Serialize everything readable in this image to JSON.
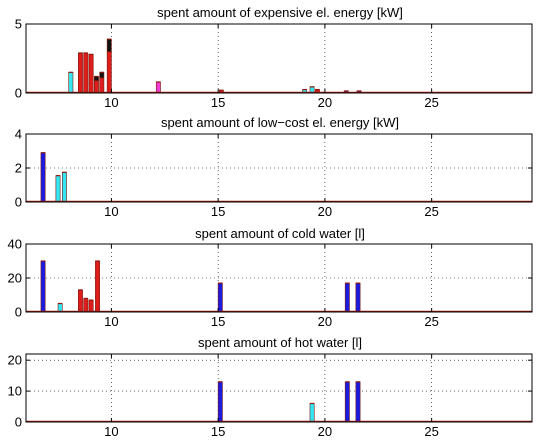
{
  "chart_data": [
    {
      "type": "bar",
      "title": "spent amount of expensive el. energy [kW]",
      "xlim": [
        6,
        29.7
      ],
      "ylim": [
        0,
        5
      ],
      "xticks": [
        10,
        15,
        20,
        25
      ],
      "yticks": [
        0,
        5
      ],
      "grid": true,
      "stacked": true,
      "bars": [
        {
          "x": 8.1,
          "segments": [
            {
              "value": 1.5,
              "color": "#33e6f2"
            }
          ]
        },
        {
          "x": 8.55,
          "segments": [
            {
              "value": 2.9,
              "color": "#dd1c1c"
            }
          ]
        },
        {
          "x": 8.8,
          "segments": [
            {
              "value": 2.9,
              "color": "#dd1c1c"
            }
          ]
        },
        {
          "x": 9.05,
          "segments": [
            {
              "value": 2.8,
              "color": "#dd1c1c"
            }
          ]
        },
        {
          "x": 9.3,
          "segments": [
            {
              "value": 0.9,
              "color": "#dd1c1c"
            },
            {
              "value": 0.3,
              "color": "#111111"
            }
          ]
        },
        {
          "x": 9.55,
          "segments": [
            {
              "value": 1.1,
              "color": "#dd1c1c"
            },
            {
              "value": 0.4,
              "color": "#111111"
            }
          ]
        },
        {
          "x": 9.9,
          "segments": [
            {
              "value": 3.0,
              "color": "#dd1c1c"
            },
            {
              "value": 0.9,
              "color": "#111111"
            }
          ]
        },
        {
          "x": 12.2,
          "segments": [
            {
              "value": 0.8,
              "color": "#f03cd2"
            }
          ]
        },
        {
          "x": 15.15,
          "segments": [
            {
              "value": 0.2,
              "color": "#dd1c1c"
            }
          ]
        },
        {
          "x": 19.05,
          "segments": [
            {
              "value": 0.25,
              "color": "#33e6f2"
            }
          ]
        },
        {
          "x": 19.4,
          "segments": [
            {
              "value": 0.45,
              "color": "#33e6f2"
            }
          ]
        },
        {
          "x": 19.65,
          "segments": [
            {
              "value": 0.25,
              "color": "#dd1c1c"
            }
          ]
        },
        {
          "x": 21.0,
          "segments": [
            {
              "value": 0.15,
              "color": "#1a1ae0"
            }
          ]
        },
        {
          "x": 21.6,
          "segments": [
            {
              "value": 0.15,
              "color": "#1a1ae0"
            }
          ]
        }
      ]
    },
    {
      "type": "bar",
      "title": "spent amount of low−cost el. energy [kW]",
      "xlim": [
        6,
        29.7
      ],
      "ylim": [
        0,
        4
      ],
      "xticks": [
        10,
        15,
        20,
        25
      ],
      "yticks": [
        0,
        2,
        4
      ],
      "grid": true,
      "stacked": true,
      "bars": [
        {
          "x": 6.8,
          "segments": [
            {
              "value": 2.9,
              "color": "#1a1ae0"
            }
          ]
        },
        {
          "x": 7.5,
          "segments": [
            {
              "value": 1.55,
              "color": "#33e6f2"
            }
          ]
        },
        {
          "x": 7.8,
          "segments": [
            {
              "value": 1.75,
              "color": "#33e6f2"
            }
          ]
        }
      ]
    },
    {
      "type": "bar",
      "title": "spent amount of cold water [l]",
      "xlim": [
        6,
        29.7
      ],
      "ylim": [
        0,
        40
      ],
      "xticks": [
        10,
        15,
        20,
        25
      ],
      "yticks": [
        0,
        20,
        40
      ],
      "grid": true,
      "stacked": true,
      "bars": [
        {
          "x": 6.8,
          "segments": [
            {
              "value": 30,
              "color": "#1a1ae0"
            }
          ]
        },
        {
          "x": 7.6,
          "segments": [
            {
              "value": 5,
              "color": "#33e6f2"
            }
          ]
        },
        {
          "x": 8.55,
          "segments": [
            {
              "value": 13,
              "color": "#dd1c1c"
            }
          ]
        },
        {
          "x": 8.8,
          "segments": [
            {
              "value": 8,
              "color": "#dd1c1c"
            }
          ]
        },
        {
          "x": 9.05,
          "segments": [
            {
              "value": 7,
              "color": "#dd1c1c"
            }
          ]
        },
        {
          "x": 9.35,
          "segments": [
            {
              "value": 30,
              "color": "#dd1c1c"
            }
          ]
        },
        {
          "x": 15.1,
          "segments": [
            {
              "value": 17,
              "color": "#1a1ae0"
            }
          ]
        },
        {
          "x": 21.05,
          "segments": [
            {
              "value": 17,
              "color": "#1a1ae0"
            }
          ]
        },
        {
          "x": 21.55,
          "segments": [
            {
              "value": 17,
              "color": "#1a1ae0"
            }
          ]
        }
      ]
    },
    {
      "type": "bar",
      "title": "spent amount of hot water [l]",
      "xlim": [
        6,
        29.7
      ],
      "ylim": [
        0,
        22
      ],
      "xticks": [
        10,
        15,
        20,
        25
      ],
      "yticks": [
        0,
        10,
        20
      ],
      "grid": true,
      "stacked": true,
      "bars": [
        {
          "x": 15.1,
          "segments": [
            {
              "value": 13,
              "color": "#1a1ae0"
            }
          ]
        },
        {
          "x": 19.4,
          "segments": [
            {
              "value": 6,
              "color": "#33e6f2"
            }
          ]
        },
        {
          "x": 21.05,
          "segments": [
            {
              "value": 13,
              "color": "#1a1ae0"
            }
          ]
        },
        {
          "x": 21.55,
          "segments": [
            {
              "value": 13,
              "color": "#1a1ae0"
            }
          ]
        }
      ]
    }
  ]
}
